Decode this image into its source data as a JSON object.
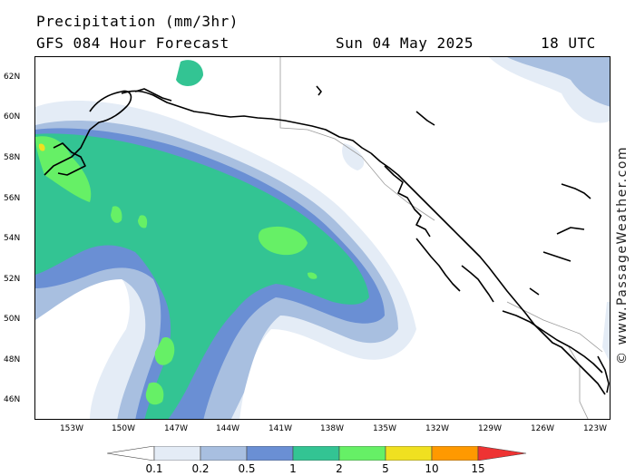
{
  "header": {
    "title": "Precipitation (mm/3hr)",
    "subtitle": "GFS 084 Hour Forecast",
    "date": "Sun 04 May 2025",
    "utc": "18 UTC"
  },
  "map": {
    "lat_labels": [
      "62N",
      "60N",
      "58N",
      "56N",
      "54N",
      "52N",
      "50N",
      "48N",
      "46N"
    ],
    "lon_labels": [
      "153W",
      "150W",
      "147W",
      "144W",
      "141W",
      "138W",
      "135W",
      "132W",
      "129W",
      "126W",
      "123W"
    ],
    "precip_colors": {
      "very_light": "#e4ecf6",
      "light": "#a8bfe0",
      "moderate": "#6a8fd4",
      "medium": "#33c493",
      "heavy": "#66f066",
      "very_heavy": "#f0e020"
    },
    "coast_color": "#000000",
    "border_color": "#9a9a9a"
  },
  "legend": {
    "values": [
      "0.1",
      "0.2",
      "0.5",
      "1",
      "2",
      "5",
      "10",
      "15"
    ],
    "colors": [
      "#ffffff",
      "#e4ecf6",
      "#a8bfe0",
      "#6a8fd4",
      "#33c493",
      "#66f066",
      "#f0e020",
      "#ff9900",
      "#ee3333"
    ]
  },
  "copyright": "© www.PassageWeather.com"
}
